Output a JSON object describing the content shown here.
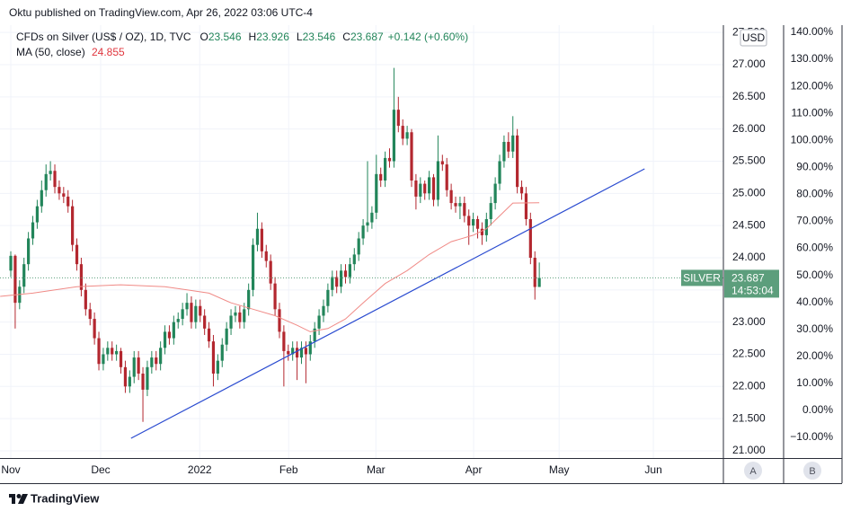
{
  "header": {
    "published": "Oktu published on TradingView.com, Apr 26, 2022 03:06 UTC-4"
  },
  "footer": {
    "brand": "TradingView"
  },
  "chart_data": {
    "type": "candlestick",
    "symbol_title": "CFDs on Silver (US$ / OZ), 1D, TVC",
    "legend_keys": [
      "O",
      "H",
      "L",
      "C"
    ],
    "change_label": "+0.142 (+0.60%)",
    "ma_title": "MA (50, close)",
    "ma_value": {
      "value": 24.855,
      "label": "24.855"
    },
    "currency": "USD",
    "symbol_tag": "SILVER",
    "countdown": "14:53:04",
    "scale_buttons": [
      "A",
      "B"
    ],
    "up_color": "#22855a",
    "down_color": "#b3272f",
    "ma_color": "#f08a86",
    "trend_color": "#2a4bd0",
    "grid": true,
    "xlim": [
      -2.45,
      161.8
    ],
    "xticks": [
      {
        "value": 0,
        "label": "Nov"
      },
      {
        "value": 20.4,
        "label": "Dec"
      },
      {
        "value": 42.9,
        "label": "2022"
      },
      {
        "value": 63.1,
        "label": "Feb"
      },
      {
        "value": 82.9,
        "label": "Mar"
      },
      {
        "value": 105.1,
        "label": "Apr"
      },
      {
        "value": 124.5,
        "label": "May"
      },
      {
        "value": 145.9,
        "label": "Jun"
      }
    ],
    "ylim": [
      20.888,
      27.614
    ],
    "yticks": [
      {
        "value": 21,
        "label": "21.000"
      },
      {
        "value": 21.5,
        "label": "21.500"
      },
      {
        "value": 22,
        "label": "22.000"
      },
      {
        "value": 22.5,
        "label": "22.500"
      },
      {
        "value": 23,
        "label": "23.000"
      },
      {
        "value": 23.5,
        "label": "23.500"
      },
      {
        "value": 24,
        "label": "24.000"
      },
      {
        "value": 24.5,
        "label": "24.500"
      },
      {
        "value": 25,
        "label": "25.000"
      },
      {
        "value": 25.5,
        "label": "25.500"
      },
      {
        "value": 26,
        "label": "26.000"
      },
      {
        "value": 26.5,
        "label": "26.500"
      },
      {
        "value": 27,
        "label": "27.000"
      },
      {
        "value": 27.5,
        "label": "27.500"
      }
    ],
    "y2lim": [
      -17.65,
      142.66
    ],
    "y2ticks": [
      {
        "value": 140,
        "label": "140.00%"
      },
      {
        "value": 130,
        "label": "130.00%"
      },
      {
        "value": 120,
        "label": "120.00%"
      },
      {
        "value": 110,
        "label": "110.00%"
      },
      {
        "value": 100,
        "label": "100.00%"
      },
      {
        "value": 90,
        "label": "90.00%"
      },
      {
        "value": 80,
        "label": "80.00%"
      },
      {
        "value": 70,
        "label": "70.00%"
      },
      {
        "value": 60,
        "label": "60.00%"
      },
      {
        "value": 50,
        "label": "50.00%"
      },
      {
        "value": 40,
        "label": "40.00%"
      },
      {
        "value": 30,
        "label": "30.00%"
      },
      {
        "value": 20,
        "label": "20.00%"
      },
      {
        "value": 10,
        "label": "10.00%"
      },
      {
        "value": 0,
        "label": "0.00%"
      },
      {
        "value": -10,
        "label": "−10.00%"
      }
    ],
    "ohlc": [
      [
        23.8,
        24.1,
        23.7,
        24.03
      ],
      [
        24.03,
        24.05,
        22.9,
        23.3
      ],
      [
        23.3,
        23.65,
        23.2,
        23.55
      ],
      [
        23.55,
        24.0,
        23.45,
        23.9
      ],
      [
        23.9,
        24.4,
        23.8,
        24.3
      ],
      [
        24.3,
        24.65,
        24.2,
        24.55
      ],
      [
        24.55,
        24.9,
        24.45,
        24.8
      ],
      [
        24.8,
        25.2,
        24.7,
        25.05
      ],
      [
        25.05,
        25.45,
        24.95,
        25.3
      ],
      [
        25.3,
        25.5,
        25.2,
        25.35
      ],
      [
        25.35,
        25.45,
        25.0,
        25.1
      ],
      [
        25.1,
        25.2,
        24.9,
        25.0
      ],
      [
        25.0,
        25.1,
        24.85,
        24.95
      ],
      [
        24.95,
        25.05,
        24.7,
        24.8
      ],
      [
        24.8,
        24.9,
        24.1,
        24.2
      ],
      [
        24.2,
        24.3,
        23.8,
        23.9
      ],
      [
        23.9,
        24.0,
        23.4,
        23.5
      ],
      [
        23.5,
        23.6,
        23.1,
        23.2
      ],
      [
        23.2,
        23.3,
        22.95,
        23.05
      ],
      [
        23.05,
        23.15,
        22.65,
        22.75
      ],
      [
        22.75,
        22.85,
        22.25,
        22.35
      ],
      [
        22.35,
        22.6,
        22.25,
        22.5
      ],
      [
        22.5,
        22.7,
        22.4,
        22.6
      ],
      [
        22.6,
        22.7,
        22.4,
        22.5
      ],
      [
        22.5,
        22.65,
        22.4,
        22.55
      ],
      [
        22.55,
        22.6,
        22.2,
        22.3
      ],
      [
        22.3,
        22.4,
        21.9,
        22.0
      ],
      [
        22.0,
        22.25,
        21.9,
        22.15
      ],
      [
        22.15,
        22.55,
        22.05,
        22.45
      ],
      [
        22.45,
        22.55,
        22.1,
        22.2
      ],
      [
        22.2,
        22.3,
        21.45,
        21.95
      ],
      [
        21.95,
        22.4,
        21.85,
        22.3
      ],
      [
        22.3,
        22.55,
        22.2,
        22.45
      ],
      [
        22.45,
        22.55,
        22.25,
        22.35
      ],
      [
        22.35,
        22.7,
        22.25,
        22.6
      ],
      [
        22.6,
        22.95,
        22.5,
        22.85
      ],
      [
        22.85,
        22.95,
        22.65,
        22.75
      ],
      [
        22.75,
        23.1,
        22.65,
        23.0
      ],
      [
        23.0,
        23.15,
        22.9,
        23.05
      ],
      [
        23.05,
        23.3,
        22.95,
        23.2
      ],
      [
        23.2,
        23.45,
        23.1,
        23.3
      ],
      [
        23.3,
        23.4,
        22.9,
        23.0
      ],
      [
        23.0,
        23.35,
        22.9,
        23.25
      ],
      [
        23.25,
        23.35,
        23.0,
        23.1
      ],
      [
        23.1,
        23.2,
        22.8,
        22.9
      ],
      [
        22.9,
        23.0,
        22.6,
        22.7
      ],
      [
        22.7,
        22.8,
        22.0,
        22.2
      ],
      [
        22.2,
        22.5,
        22.1,
        22.4
      ],
      [
        22.4,
        22.75,
        22.3,
        22.65
      ],
      [
        22.65,
        23.0,
        22.55,
        22.9
      ],
      [
        22.9,
        23.2,
        22.8,
        23.1
      ],
      [
        23.1,
        23.25,
        23.0,
        23.15
      ],
      [
        23.15,
        23.25,
        22.9,
        23.0
      ],
      [
        23.0,
        23.3,
        22.9,
        23.2
      ],
      [
        23.2,
        23.6,
        23.1,
        23.5
      ],
      [
        23.5,
        24.3,
        23.4,
        24.2
      ],
      [
        24.2,
        24.7,
        24.1,
        24.45
      ],
      [
        24.45,
        24.55,
        24.0,
        24.1
      ],
      [
        24.1,
        24.2,
        23.85,
        23.95
      ],
      [
        23.95,
        24.05,
        23.5,
        23.6
      ],
      [
        23.6,
        23.7,
        23.1,
        23.2
      ],
      [
        23.2,
        23.3,
        22.75,
        22.85
      ],
      [
        22.85,
        22.95,
        22.0,
        22.55
      ],
      [
        22.55,
        22.65,
        22.4,
        22.5
      ],
      [
        22.5,
        22.7,
        22.4,
        22.6
      ],
      [
        22.6,
        22.7,
        22.1,
        22.45
      ],
      [
        22.45,
        22.7,
        22.35,
        22.6
      ],
      [
        22.6,
        22.7,
        22.05,
        22.5
      ],
      [
        22.5,
        22.8,
        22.4,
        22.7
      ],
      [
        22.7,
        23.0,
        22.6,
        22.9
      ],
      [
        22.9,
        23.2,
        22.8,
        23.1
      ],
      [
        23.1,
        23.35,
        23.0,
        23.25
      ],
      [
        23.25,
        23.6,
        23.15,
        23.5
      ],
      [
        23.5,
        23.8,
        23.4,
        23.7
      ],
      [
        23.7,
        23.8,
        23.45,
        23.55
      ],
      [
        23.55,
        23.9,
        23.45,
        23.8
      ],
      [
        23.8,
        23.9,
        23.6,
        23.7
      ],
      [
        23.7,
        24.0,
        23.6,
        23.9
      ],
      [
        23.9,
        24.15,
        23.8,
        24.05
      ],
      [
        24.05,
        24.4,
        23.95,
        24.3
      ],
      [
        24.3,
        24.6,
        24.2,
        24.5
      ],
      [
        24.5,
        25.5,
        24.4,
        24.55
      ],
      [
        24.55,
        24.8,
        24.45,
        24.7
      ],
      [
        24.7,
        25.6,
        24.6,
        25.3
      ],
      [
        25.3,
        25.4,
        25.1,
        25.2
      ],
      [
        25.2,
        25.65,
        25.1,
        25.55
      ],
      [
        25.55,
        25.7,
        25.4,
        25.5
      ],
      [
        25.5,
        26.95,
        25.4,
        26.3
      ],
      [
        26.3,
        26.5,
        25.95,
        26.05
      ],
      [
        26.05,
        26.15,
        25.75,
        25.85
      ],
      [
        25.85,
        26.05,
        25.75,
        25.95
      ],
      [
        25.95,
        26.0,
        25.1,
        25.2
      ],
      [
        25.2,
        25.3,
        24.75,
        24.95
      ],
      [
        24.95,
        25.25,
        24.85,
        25.15
      ],
      [
        25.15,
        25.2,
        24.9,
        25.0
      ],
      [
        25.0,
        25.35,
        24.9,
        25.25
      ],
      [
        25.25,
        25.3,
        24.8,
        24.9
      ],
      [
        24.9,
        25.9,
        24.8,
        25.5
      ],
      [
        25.5,
        25.6,
        25.35,
        25.45
      ],
      [
        25.45,
        25.55,
        24.95,
        25.05
      ],
      [
        25.05,
        25.15,
        24.75,
        24.85
      ],
      [
        24.85,
        24.95,
        24.7,
        24.8
      ],
      [
        24.8,
        24.95,
        24.6,
        24.85
      ],
      [
        24.85,
        24.95,
        24.55,
        24.65
      ],
      [
        24.65,
        24.75,
        24.2,
        24.5
      ],
      [
        24.5,
        24.7,
        24.4,
        24.6
      ],
      [
        24.6,
        24.65,
        24.3,
        24.45
      ],
      [
        24.45,
        24.55,
        24.2,
        24.35
      ],
      [
        24.35,
        24.7,
        24.25,
        24.6
      ],
      [
        24.6,
        24.95,
        24.5,
        24.85
      ],
      [
        24.85,
        25.25,
        24.75,
        25.15
      ],
      [
        25.15,
        25.6,
        25.05,
        25.5
      ],
      [
        25.5,
        25.9,
        25.4,
        25.8
      ],
      [
        25.8,
        25.95,
        25.55,
        25.65
      ],
      [
        25.65,
        26.2,
        25.55,
        25.9
      ],
      [
        25.9,
        26.0,
        25.0,
        25.1
      ],
      [
        25.1,
        25.2,
        24.9,
        25.0
      ],
      [
        25.0,
        25.1,
        24.5,
        24.6
      ],
      [
        24.6,
        24.7,
        23.9,
        24.0
      ],
      [
        24.0,
        24.1,
        23.35,
        23.546
      ],
      [
        23.546,
        23.926,
        23.546,
        23.687
      ]
    ],
    "ma": {
      "x": [
        -2.4,
        5,
        15,
        25,
        35,
        40,
        45,
        50,
        55,
        60,
        65,
        68,
        72,
        76,
        80,
        85,
        90,
        95,
        100,
        105,
        108,
        111,
        114,
        120
      ],
      "values": [
        23.4,
        23.45,
        23.55,
        23.58,
        23.55,
        23.5,
        23.45,
        23.3,
        23.2,
        23.1,
        22.95,
        22.85,
        22.9,
        23.05,
        23.3,
        23.6,
        23.8,
        24.05,
        24.25,
        24.35,
        24.45,
        24.65,
        24.85,
        24.855
      ]
    },
    "trendline": {
      "x": [
        27.3,
        143.9
      ],
      "y": [
        21.195,
        25.381
      ]
    }
  }
}
